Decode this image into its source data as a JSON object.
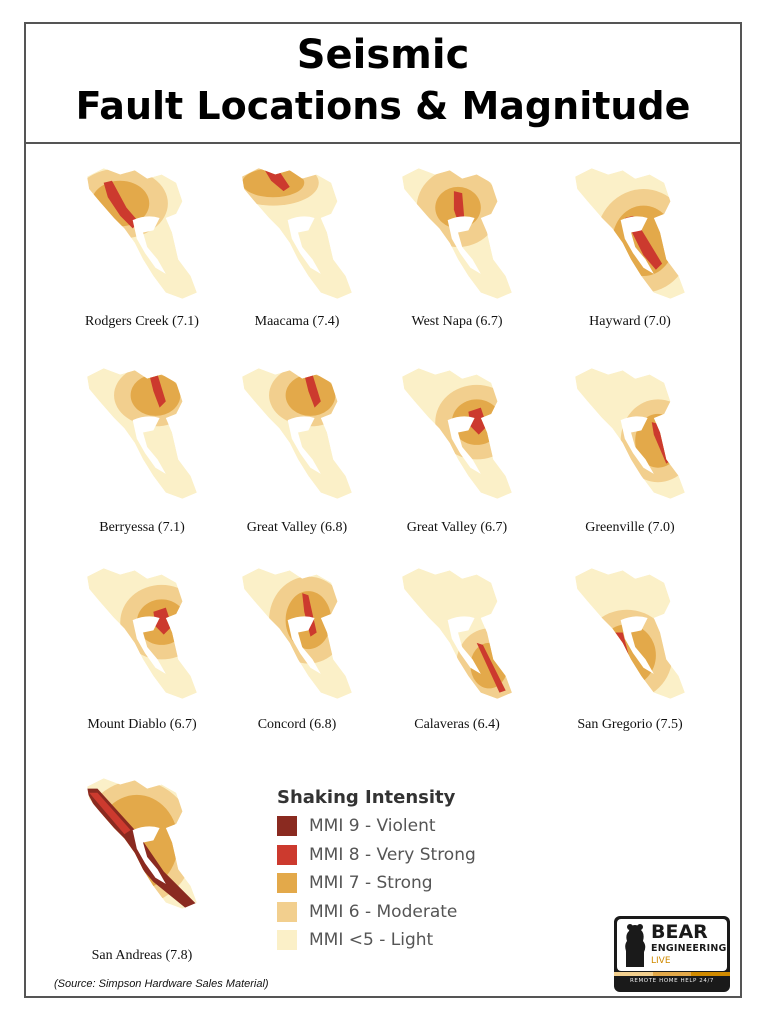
{
  "title": {
    "line1": "Seismic",
    "line2": "Fault Locations & Magnitude"
  },
  "colors": {
    "mmi9": "#8a2a20",
    "mmi8": "#cc3a2e",
    "mmi7": "#e3a94a",
    "mmi6": "#f2cf8e",
    "mmi5": "#fbf0c8"
  },
  "faults": [
    {
      "name": "Rodgers Creek (7.1)",
      "icon": "fault-rodgers-creek-map",
      "zone": "north-west",
      "strong_level": "mmi8"
    },
    {
      "name": "Maacama (7.4)",
      "icon": "fault-maacama-map",
      "zone": "far-north",
      "strong_level": "mmi8"
    },
    {
      "name": "West Napa (6.7)",
      "icon": "fault-west-napa-map",
      "zone": "north-center",
      "strong_level": "mmi8"
    },
    {
      "name": "Hayward (7.0)",
      "icon": "fault-hayward-map",
      "zone": "central-bay",
      "strong_level": "mmi8"
    },
    {
      "name": "Berryessa (7.1)",
      "icon": "fault-berryessa-map",
      "zone": "north-east",
      "strong_level": "mmi8"
    },
    {
      "name": "Great Valley (6.8)",
      "icon": "fault-great-valley-68-map",
      "zone": "north-east",
      "strong_level": "mmi8"
    },
    {
      "name": "Great Valley (6.7)",
      "icon": "fault-great-valley-67-map",
      "zone": "east-center",
      "strong_level": "mmi8"
    },
    {
      "name": "Greenville (7.0)",
      "icon": "fault-greenville-map",
      "zone": "east",
      "strong_level": "mmi8"
    },
    {
      "name": "Mount Diablo (6.7)",
      "icon": "fault-mount-diablo-map",
      "zone": "east-center",
      "strong_level": "mmi8"
    },
    {
      "name": "Concord (6.8)",
      "icon": "fault-concord-map",
      "zone": "central",
      "strong_level": "mmi8"
    },
    {
      "name": "Calaveras (6.4)",
      "icon": "fault-calaveras-map",
      "zone": "south-east",
      "strong_level": "mmi8"
    },
    {
      "name": "San Gregorio (7.5)",
      "icon": "fault-san-gregorio-map",
      "zone": "coast-west",
      "strong_level": "mmi8"
    },
    {
      "name": "San Andreas (7.8)",
      "icon": "fault-san-andreas-map",
      "zone": "coast-full",
      "strong_level": "mmi9"
    }
  ],
  "legend": {
    "title": "Shaking Intensity",
    "items": [
      {
        "label": "MMI 9 - Violent",
        "color": "#8a2a20"
      },
      {
        "label": "MMI 8 - Very Strong",
        "color": "#cc3a2e"
      },
      {
        "label": "MMI 7 - Strong",
        "color": "#e3a94a"
      },
      {
        "label": "MMI 6 - Moderate",
        "color": "#f2cf8e"
      },
      {
        "label": "MMI <5 - Light",
        "color": "#fbf0c8"
      }
    ]
  },
  "source": "(Source: Simpson Hardware Sales Material)",
  "logo": {
    "name": "BEAR",
    "subtitle": "ENGINEERING",
    "tag": "LIVE",
    "tagline": "REMOTE HOME HELP 24/7"
  }
}
